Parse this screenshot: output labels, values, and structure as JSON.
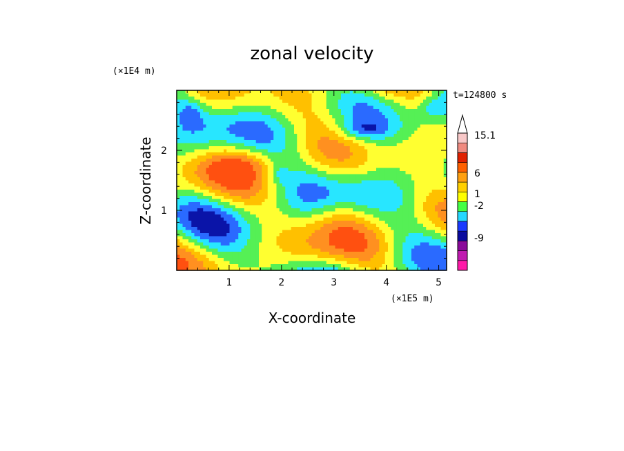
{
  "chart_data": {
    "type": "heatmap",
    "title": "zonal velocity",
    "xlabel": "X-coordinate",
    "ylabel": "Z-coordinate",
    "x_unit": "(×1E5 m)",
    "y_unit": "(×1E4 m)",
    "time_label": "t=124800 s",
    "x_ticks": [
      "1",
      "2",
      "3",
      "4",
      "5"
    ],
    "y_ticks": [
      "1",
      "2"
    ],
    "xlim": [
      0,
      5.15
    ],
    "ylim": [
      0,
      3.0
    ],
    "grid": false,
    "colorbar": {
      "placement": "right",
      "labels": [
        "15.1",
        "6",
        "1",
        "-2",
        "-9"
      ],
      "levels": [
        {
          "color": "#ff1aa8"
        },
        {
          "color": "#c01ab0"
        },
        {
          "color": "#8a0a9a"
        },
        {
          "color": "#0a0a9e"
        },
        {
          "color": "#1a3aff"
        },
        {
          "color": "#25d8ff"
        },
        {
          "color": "#45ff45"
        },
        {
          "color": "#ffff00"
        },
        {
          "color": "#ffd000"
        },
        {
          "color": "#ffa010"
        },
        {
          "color": "#ff6000"
        },
        {
          "color": "#e02000"
        },
        {
          "color": "#f08a80"
        },
        {
          "color": "#f8c8c8"
        }
      ]
    },
    "field_palette": {
      "deep_negative": "#0a14a8",
      "negative": "#2a6aff",
      "weak_negative": "#28e6ff",
      "near_zero": "#55f055",
      "weak_positive": "#ffff30",
      "positive": "#ffc000",
      "strong_positive": "#ff9020",
      "very_strong_positive": "#ff5010"
    }
  }
}
